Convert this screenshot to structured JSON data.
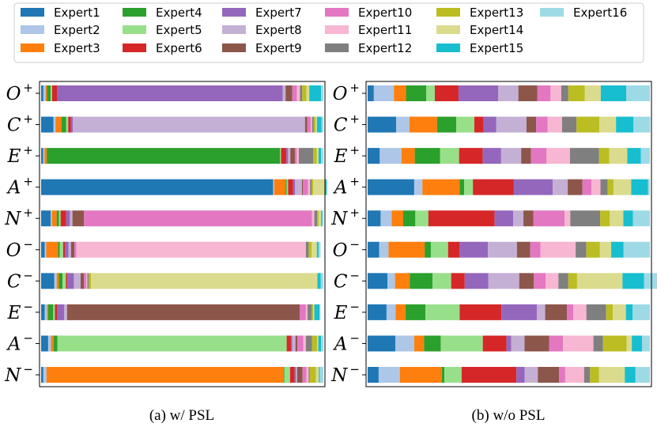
{
  "chart_data": {
    "type": "bar",
    "orientation": "horizontal-stacked",
    "legend": {
      "placement": "top",
      "entries": [
        "Expert1",
        "Expert2",
        "Expert3",
        "Expert4",
        "Expert5",
        "Expert6",
        "Expert7",
        "Expert8",
        "Expert9",
        "Expert10",
        "Expert11",
        "Expert12",
        "Expert13",
        "Expert14",
        "Expert15",
        "Expert16"
      ],
      "colors": [
        "#1f77b4",
        "#aec7e8",
        "#ff7f0e",
        "#2ca02c",
        "#98df8a",
        "#d62728",
        "#9467bd",
        "#c5b0d5",
        "#8c564b",
        "#e377c2",
        "#f7b6d2",
        "#7f7f7f",
        "#bcbd22",
        "#dbdb8d",
        "#17becf",
        "#9edae5"
      ]
    },
    "categories": [
      {
        "letter": "O",
        "sign": "+"
      },
      {
        "letter": "C",
        "sign": "+"
      },
      {
        "letter": "E",
        "sign": "+"
      },
      {
        "letter": "A",
        "sign": "+"
      },
      {
        "letter": "N",
        "sign": "+"
      },
      {
        "letter": "O",
        "sign": "−"
      },
      {
        "letter": "C",
        "sign": "−"
      },
      {
        "letter": "E",
        "sign": "−"
      },
      {
        "letter": "A",
        "sign": "−"
      },
      {
        "letter": "N",
        "sign": "−"
      }
    ],
    "xlim": [
      0,
      1
    ],
    "panels": [
      {
        "caption": "(a) w/ PSL",
        "series_values": [
          [
            0.008,
            0.008,
            0.005,
            0.013,
            0.005,
            0.017,
            0.8,
            0.01,
            0.024,
            0.016,
            0.011,
            0.008,
            0.015,
            0.01,
            0.042,
            0.008
          ],
          [
            0.044,
            0.007,
            0.021,
            0.017,
            0.007,
            0.009,
            0.007,
            0.823,
            0.008,
            0.012,
            0.005,
            0.005,
            0.007,
            0.005,
            0.016,
            0.007
          ],
          [
            0.007,
            0.005,
            0.008,
            0.826,
            0.004,
            0.019,
            0.006,
            0.008,
            0.016,
            0.007,
            0.007,
            0.051,
            0.013,
            0.006,
            0.009,
            0.008
          ],
          [
            0.822,
            0.004,
            0.04,
            0.004,
            0.005,
            0.018,
            0.007,
            0.024,
            0.004,
            0.018,
            0.007,
            0.005,
            0.006,
            0.043,
            0.004,
            0.003
          ],
          [
            0.034,
            0.004,
            0.017,
            0.008,
            0.006,
            0.02,
            0.013,
            0.009,
            0.041,
            0.808,
            0.008,
            0.01,
            0.006,
            0.008,
            0.004,
            0.004
          ],
          [
            0.013,
            0.005,
            0.042,
            0.006,
            0.012,
            0.007,
            0.012,
            0.009,
            0.012,
            0.007,
            0.813,
            0.01,
            0.01,
            0.019,
            0.006,
            0.007
          ],
          [
            0.047,
            0.008,
            0.008,
            0.013,
            0.012,
            0.005,
            0.023,
            0.024,
            0.012,
            0.008,
            0.004,
            0.005,
            0.008,
            0.802,
            0.012,
            0.009
          ],
          [
            0.013,
            0.008,
            0.004,
            0.018,
            0.006,
            0.007,
            0.026,
            0.01,
            0.824,
            0.022,
            0.006,
            0.015,
            0.005,
            0.004,
            0.018,
            0.004
          ],
          [
            0.025,
            0.01,
            0.009,
            0.014,
            0.812,
            0.015,
            0.005,
            0.011,
            0.007,
            0.021,
            0.009,
            0.022,
            0.018,
            0.004,
            0.01,
            0.008
          ],
          [
            0.008,
            0.011,
            0.84,
            0.003,
            0.02,
            0.016,
            0.005,
            0.004,
            0.019,
            0.014,
            0.008,
            0.004,
            0.022,
            0.01,
            0.004,
            0.012
          ]
        ]
      },
      {
        "caption": "(b) w/o PSL",
        "series_values": [
          [
            0.022,
            0.071,
            0.043,
            0.072,
            0.03,
            0.084,
            0.141,
            0.071,
            0.067,
            0.047,
            0.038,
            0.025,
            0.058,
            0.057,
            0.09,
            0.084
          ],
          [
            0.101,
            0.047,
            0.098,
            0.068,
            0.064,
            0.033,
            0.045,
            0.107,
            0.034,
            0.041,
            0.051,
            0.051,
            0.081,
            0.059,
            0.062,
            0.059
          ],
          [
            0.043,
            0.077,
            0.047,
            0.09,
            0.067,
            0.084,
            0.065,
            0.071,
            0.035,
            0.055,
            0.083,
            0.103,
            0.036,
            0.064,
            0.048,
            0.032
          ],
          [
            0.165,
            0.029,
            0.132,
            0.016,
            0.031,
            0.145,
            0.138,
            0.053,
            0.052,
            0.032,
            0.032,
            0.025,
            0.021,
            0.063,
            0.059,
            0.007
          ],
          [
            0.046,
            0.039,
            0.041,
            0.043,
            0.046,
            0.235,
            0.066,
            0.036,
            0.035,
            0.111,
            0.02,
            0.106,
            0.034,
            0.048,
            0.034,
            0.06
          ],
          [
            0.041,
            0.033,
            0.128,
            0.022,
            0.061,
            0.041,
            0.1,
            0.103,
            0.047,
            0.036,
            0.125,
            0.038,
            0.048,
            0.04,
            0.044,
            0.093
          ],
          [
            0.07,
            0.027,
            0.052,
            0.081,
            0.066,
            0.048,
            0.084,
            0.109,
            0.052,
            0.042,
            0.045,
            0.035,
            0.031,
            0.161,
            0.076,
            0.061
          ],
          [
            0.067,
            0.032,
            0.035,
            0.071,
            0.121,
            0.148,
            0.126,
            0.029,
            0.077,
            0.023,
            0.046,
            0.07,
            0.024,
            0.046,
            0.024,
            0.061
          ],
          [
            0.098,
            0.067,
            0.035,
            0.059,
            0.149,
            0.084,
            0.017,
            0.047,
            0.087,
            0.049,
            0.108,
            0.034,
            0.084,
            0.018,
            0.036,
            0.028
          ],
          [
            0.039,
            0.075,
            0.149,
            0.009,
            0.061,
            0.194,
            0.029,
            0.047,
            0.075,
            0.022,
            0.067,
            0.021,
            0.032,
            0.091,
            0.038,
            0.051
          ]
        ]
      }
    ]
  }
}
